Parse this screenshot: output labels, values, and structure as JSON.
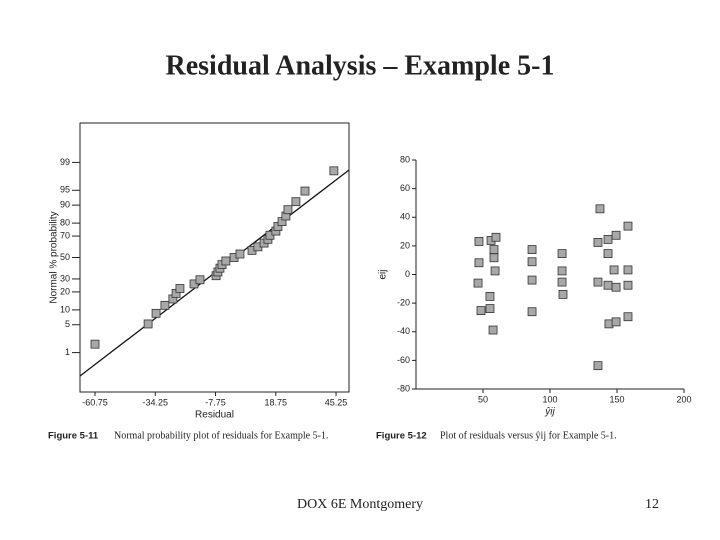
{
  "title": "Residual Analysis – Example 5-1",
  "footer": {
    "text": "DOX 6E Montgomery",
    "page": "12"
  },
  "chart_data": [
    {
      "type": "scatter",
      "x_label": "Residual",
      "y_label": "Normal % probability",
      "x": [
        -60.75,
        -37.4,
        -33.9,
        -30.0,
        -26.5,
        -25.1,
        -23.4,
        -17.2,
        -14.6,
        -7.5,
        -6.7,
        -5.8,
        -4.9,
        -3.2,
        0.4,
        3.0,
        8.3,
        10.9,
        13.6,
        15.3,
        16.2,
        18.8,
        19.7,
        21.5,
        23.2,
        24.1,
        27.6,
        31.6,
        44.3
      ],
      "series": [
        {
          "color": "#a8a8a8",
          "values": [
            1.7,
            5.2,
            8.6,
            12.1,
            15.5,
            19.0,
            22.4,
            25.9,
            29.3,
            32.8,
            36.2,
            39.7,
            43.1,
            46.6,
            50.0,
            53.4,
            56.9,
            60.3,
            63.8,
            67.2,
            70.7,
            74.1,
            77.6,
            81.0,
            84.5,
            87.9,
            91.4,
            94.8,
            98.3
          ]
        }
      ],
      "xlim": [
        -67.35,
        50.95
      ],
      "xticks": [
        -60.75,
        -34.25,
        -7.75,
        18.75,
        45.25
      ],
      "ylim": [
        0.05,
        99.95
      ],
      "yticks": [
        1,
        5,
        10,
        20,
        30,
        50,
        70,
        80,
        90,
        95,
        99
      ],
      "y_scale": "probability",
      "caption": {
        "label": "Figure 5-11",
        "text": "Normal probability plot of residuals for Example 5-1."
      }
    },
    {
      "type": "scatter",
      "x_label": "ŷij",
      "y_label": "eij",
      "x": [
        46.3,
        47.0,
        47.0,
        48.5,
        55.2,
        55.2,
        56.0,
        57.5,
        58.2,
        58.2,
        59.0,
        59.7,
        86.6,
        86.6,
        86.6,
        86.6,
        109.0,
        109.0,
        109.0,
        109.7,
        135.8,
        135.8,
        135.8,
        137.3,
        143.3,
        143.3,
        143.3,
        144.0,
        147.8,
        149.3,
        149.3,
        149.3,
        158.2,
        158.2,
        158.2,
        158.2
      ],
      "series": [
        {
          "color": "#a8a8a8",
          "values": [
            -6.0,
            23.1,
            8.2,
            -25.2,
            -15.3,
            -23.8,
            23.8,
            -38.8,
            17.4,
            11.7,
            2.5,
            26.0,
            17.4,
            8.9,
            -3.9,
            -26.0,
            14.6,
            2.5,
            -5.3,
            -13.9,
            22.4,
            -5.3,
            -63.7,
            45.9,
            24.5,
            14.6,
            -7.5,
            -34.5,
            3.2,
            27.4,
            -8.9,
            -33.1,
            33.8,
            3.2,
            -7.5,
            -29.5
          ]
        }
      ],
      "xlim": [
        0,
        200
      ],
      "xticks": [
        50,
        100,
        150,
        200
      ],
      "ylim": [
        -80,
        80
      ],
      "yticks": [
        -80,
        -60,
        -40,
        -20,
        0,
        20,
        40,
        60,
        80
      ],
      "caption": {
        "label": "Figure 5-12",
        "text": "Plot of residuals versus ŷij for Example 5-1."
      }
    }
  ]
}
